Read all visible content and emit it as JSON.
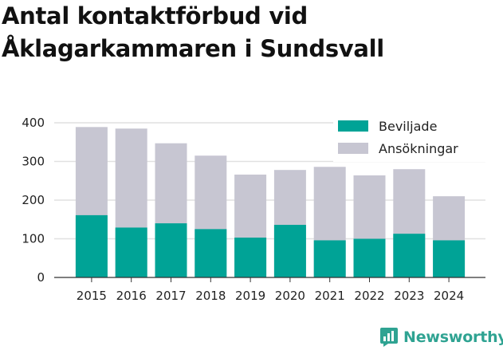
{
  "title": "Antal kontaktförbud vid Åklagarkammaren i Sundsvall",
  "brand": "Newsworthy",
  "colors": {
    "beviljade": "#00a396",
    "ansokningar": "#c7c6d2",
    "grid": "#e1e1e1",
    "brand": "#2fa392"
  },
  "chart_data": {
    "type": "bar",
    "stacked": false,
    "overlapping": true,
    "categories": [
      "2015",
      "2016",
      "2017",
      "2018",
      "2019",
      "2020",
      "2021",
      "2022",
      "2023",
      "2024"
    ],
    "series": [
      {
        "name": "Beviljade",
        "values": [
          161,
          129,
          140,
          125,
          103,
          136,
          96,
          100,
          113,
          96
        ]
      },
      {
        "name": "Ansökningar",
        "values": [
          389,
          385,
          347,
          315,
          266,
          278,
          286,
          264,
          280,
          210
        ]
      }
    ],
    "yticks": [
      0,
      100,
      200,
      300,
      400
    ],
    "ylim": [
      0,
      400
    ],
    "grid": true,
    "legend_position": "top-right"
  }
}
